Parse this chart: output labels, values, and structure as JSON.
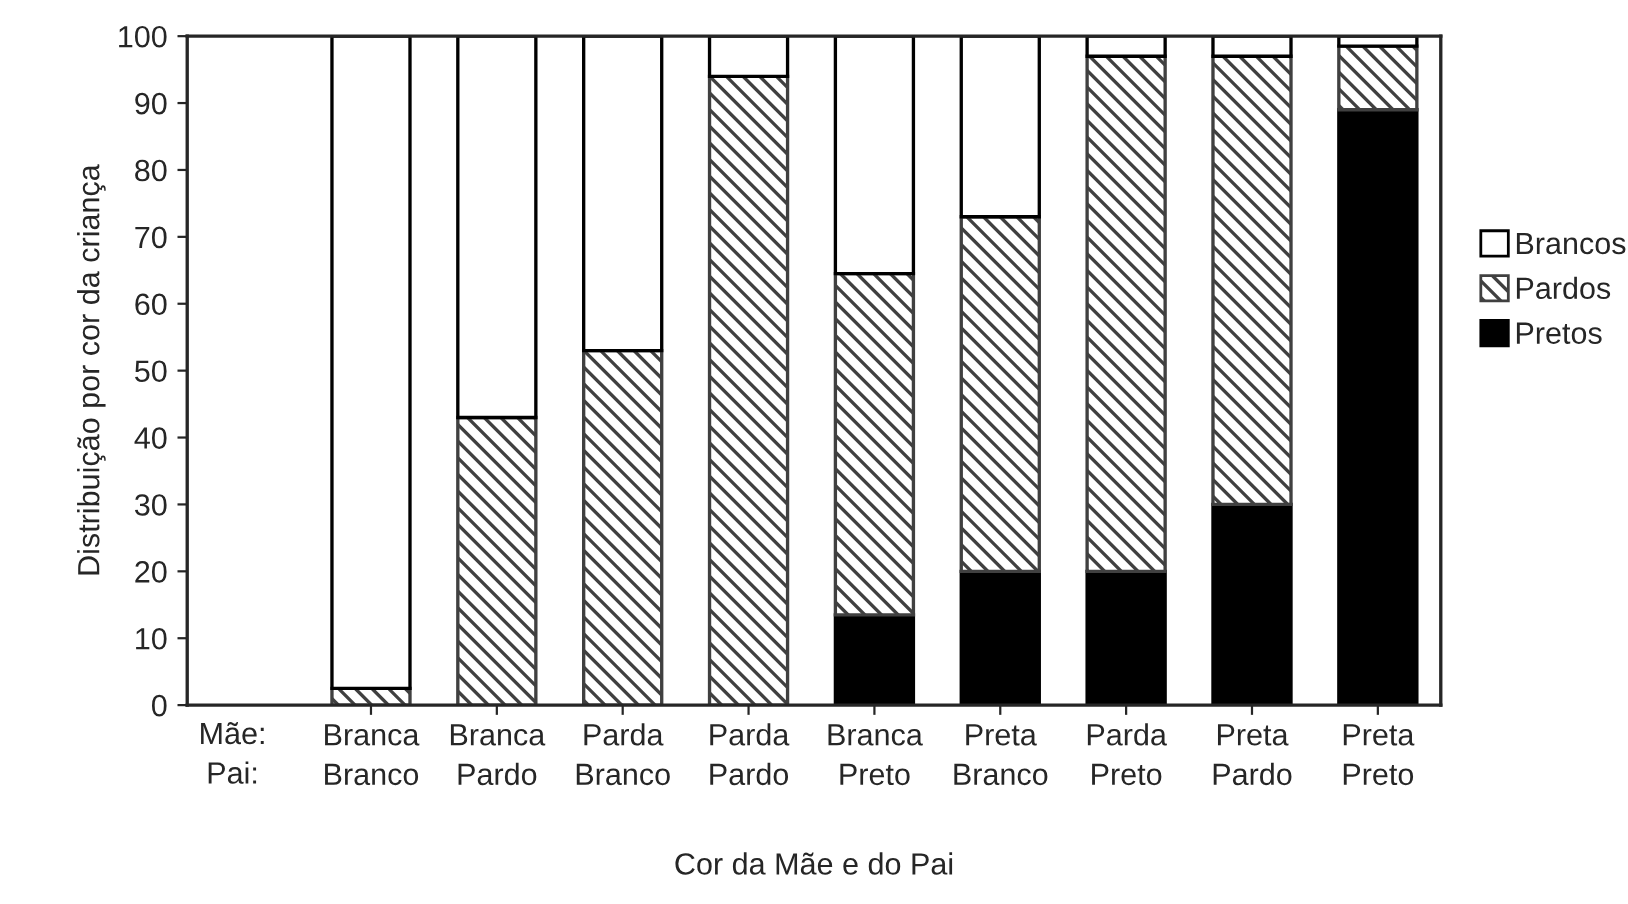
{
  "chart_data": {
    "type": "bar",
    "stacked": true,
    "xlabel": "Cor da Mãe e do Pai",
    "ylabel": "Distribuição por cor da criança",
    "categories": [
      "Branca\nBranco",
      "Branca\nPardo",
      "Parda\nBranco",
      "Parda\nPardo",
      "Branca\nPreto",
      "Preta\nBranco",
      "Parda\nPreto",
      "Preta\nPardo",
      "Preta\nPreto"
    ],
    "series": [
      {
        "name": "Pretos",
        "color": "#000000",
        "values": [
          0,
          0,
          0,
          0,
          13.5,
          20,
          20,
          30,
          89
        ]
      },
      {
        "name": "Pardos",
        "color": "#404040",
        "values": [
          2.5,
          43,
          53,
          94,
          51,
          53,
          77,
          67,
          9.5
        ]
      },
      {
        "name": "Brancos",
        "color": "#ffffff",
        "values": [
          97.5,
          57,
          47,
          6,
          35.5,
          27,
          3,
          3,
          1.5
        ]
      }
    ],
    "ylim": [
      0,
      100
    ],
    "yticks": [
      0,
      10,
      20,
      30,
      40,
      50,
      60,
      70,
      80,
      90,
      100
    ],
    "annotations": [
      "Mãe:\nPai:"
    ],
    "legend": "right",
    "grid": false
  }
}
